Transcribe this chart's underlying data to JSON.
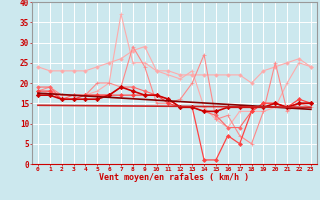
{
  "xlabel": "Vent moyen/en rafales ( km/h )",
  "xlim": [
    -0.5,
    23.5
  ],
  "ylim": [
    0,
    40
  ],
  "yticks": [
    0,
    5,
    10,
    15,
    20,
    25,
    30,
    35,
    40
  ],
  "xticks": [
    0,
    1,
    2,
    3,
    4,
    5,
    6,
    7,
    8,
    9,
    10,
    11,
    12,
    13,
    14,
    15,
    16,
    17,
    18,
    19,
    20,
    21,
    22,
    23
  ],
  "background_color": "#cce8ee",
  "series": [
    {
      "color": "#ffaaaa",
      "linewidth": 0.8,
      "marker": "D",
      "markersize": 1.8,
      "values": [
        24,
        23,
        23,
        23,
        23,
        24,
        25,
        26,
        28,
        29,
        23,
        23,
        22,
        22,
        22,
        22,
        22,
        22,
        20,
        23,
        24,
        25,
        26,
        24
      ]
    },
    {
      "color": "#ffaaaa",
      "linewidth": 0.8,
      "marker": "+",
      "markersize": 3,
      "values": [
        17,
        18,
        17,
        17,
        17,
        18,
        20,
        37,
        25,
        25,
        23,
        22,
        21,
        23,
        14,
        11,
        9,
        13,
        13,
        13,
        14,
        20,
        25,
        24
      ]
    },
    {
      "color": "#ff8888",
      "linewidth": 0.8,
      "marker": "+",
      "markersize": 3,
      "values": [
        18,
        19,
        17,
        17,
        17,
        20,
        20,
        19,
        29,
        24,
        15,
        15,
        16,
        20,
        27,
        11,
        12,
        7,
        5,
        13,
        25,
        13,
        15,
        14
      ]
    },
    {
      "color": "#ff6666",
      "linewidth": 0.8,
      "marker": "D",
      "markersize": 1.8,
      "values": [
        19,
        19,
        16,
        17,
        17,
        17,
        17,
        19,
        19,
        18,
        17,
        16,
        14,
        14,
        13,
        12,
        9,
        9,
        13,
        15,
        15,
        14,
        15,
        15
      ]
    },
    {
      "color": "#ff4444",
      "linewidth": 0.9,
      "marker": "D",
      "markersize": 2.0,
      "values": [
        18,
        18,
        16,
        16,
        17,
        17,
        17,
        17,
        17,
        17,
        17,
        15,
        14,
        14,
        1,
        1,
        7,
        5,
        13,
        15,
        15,
        14,
        16,
        15
      ]
    },
    {
      "color": "#cc0000",
      "linewidth": 1.2,
      "marker": "D",
      "markersize": 2.2,
      "values": [
        17,
        17,
        16,
        16,
        16,
        16,
        17,
        19,
        18,
        17,
        17,
        16,
        14,
        14,
        13,
        13,
        14,
        14,
        14,
        14,
        15,
        14,
        15,
        15
      ]
    },
    {
      "color": "#880000",
      "linewidth": 1.2,
      "marker": null,
      "markersize": 0,
      "trend": [
        17.5,
        13.5
      ]
    },
    {
      "color": "#cc2222",
      "linewidth": 1.2,
      "marker": null,
      "markersize": 0,
      "trend": [
        14.5,
        14.0
      ]
    }
  ]
}
